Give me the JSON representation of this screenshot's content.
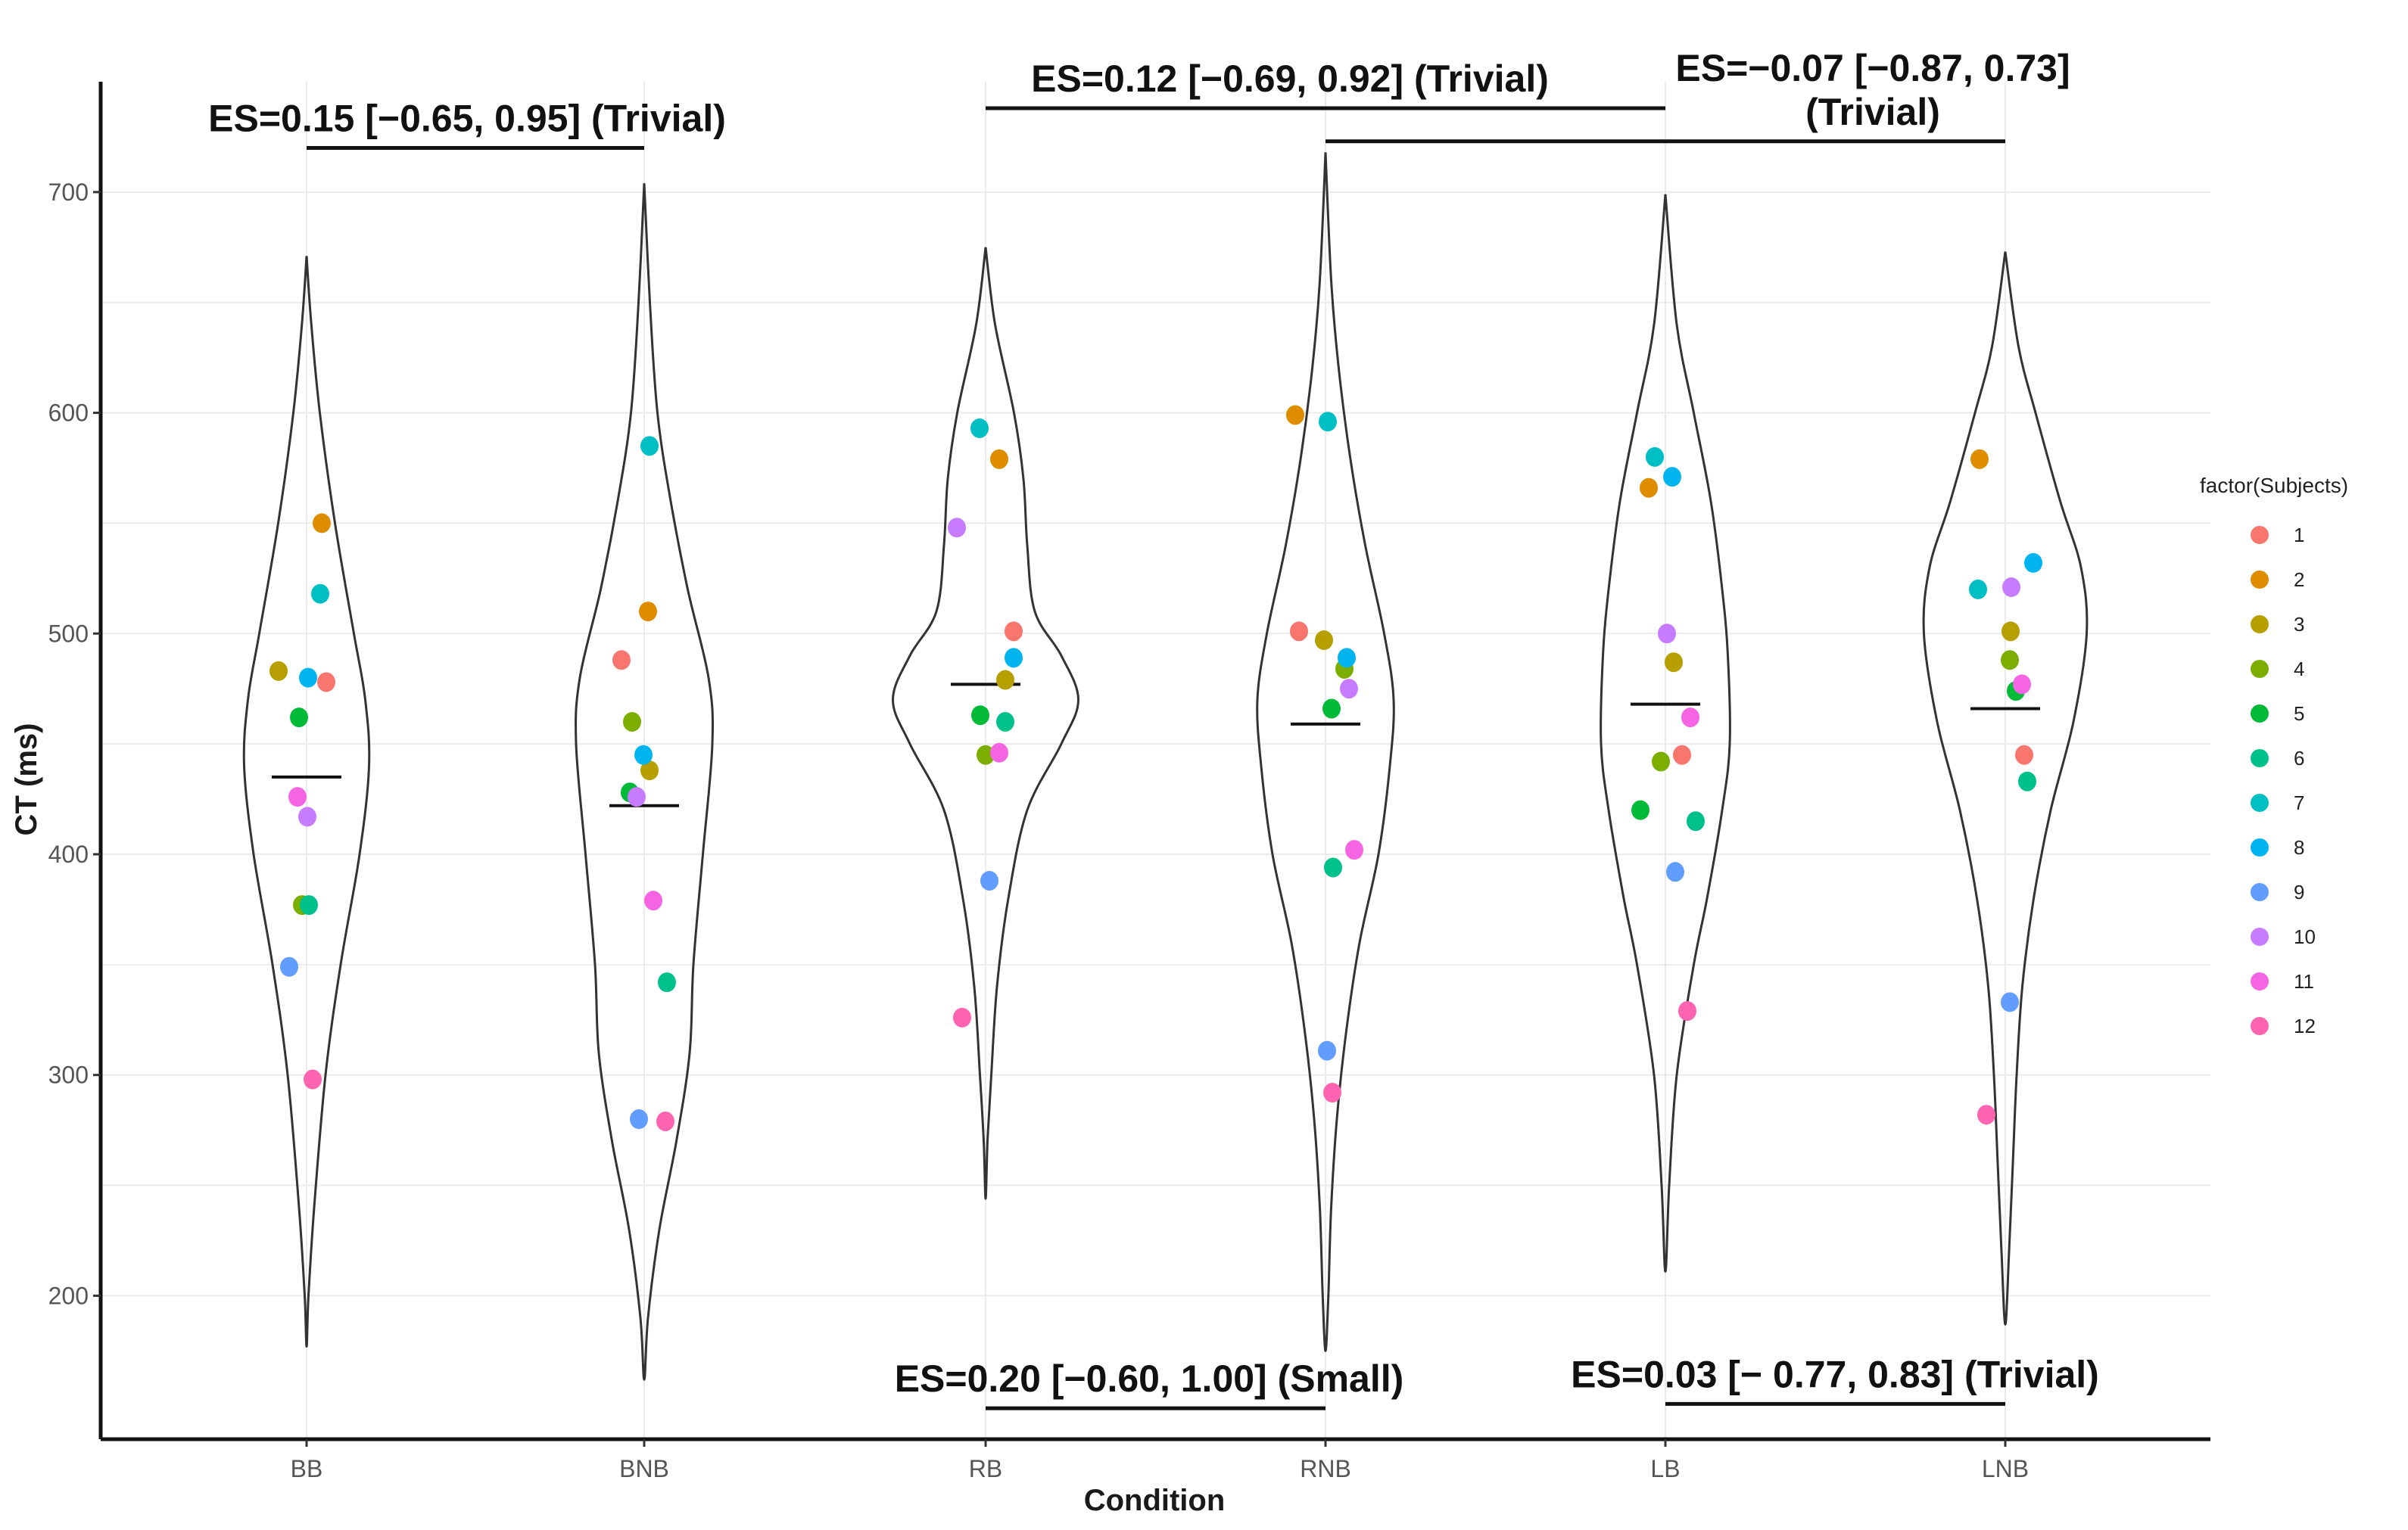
{
  "chart_data": {
    "type": "violin",
    "xlabel": "Condition",
    "ylabel": "CT (ms)",
    "ylim": [
      135,
      750
    ],
    "yticks": [
      200,
      300,
      400,
      500,
      600,
      700
    ],
    "categories": [
      "BB",
      "BNB",
      "RB",
      "RNB",
      "LB",
      "LNB"
    ],
    "grid": true,
    "legend": {
      "title": "factor(Subjects)",
      "position": "right",
      "entries": [
        {
          "label": "1",
          "color": "#F8766D"
        },
        {
          "label": "2",
          "color": "#DE8C00"
        },
        {
          "label": "3",
          "color": "#B79F00"
        },
        {
          "label": "4",
          "color": "#7CAE00"
        },
        {
          "label": "5",
          "color": "#00BA38"
        },
        {
          "label": "6",
          "color": "#00C08B"
        },
        {
          "label": "7",
          "color": "#00BFC4"
        },
        {
          "label": "8",
          "color": "#00B4F0"
        },
        {
          "label": "9",
          "color": "#619CFF"
        },
        {
          "label": "10",
          "color": "#C77CFF"
        },
        {
          "label": "11",
          "color": "#F564E3"
        },
        {
          "label": "12",
          "color": "#FF64B0"
        }
      ]
    },
    "means": [
      435,
      422,
      477,
      459,
      468,
      466
    ],
    "violins": [
      {
        "condition": "BB",
        "profile": [
          [
            177,
            0
          ],
          [
            200,
            2
          ],
          [
            240,
            8
          ],
          [
            300,
            20
          ],
          [
            350,
            36
          ],
          [
            400,
            56
          ],
          [
            440,
            66
          ],
          [
            470,
            62
          ],
          [
            500,
            50
          ],
          [
            550,
            30
          ],
          [
            600,
            14
          ],
          [
            640,
            5
          ],
          [
            671,
            0
          ]
        ]
      },
      {
        "condition": "BNB",
        "profile": [
          [
            162,
            0
          ],
          [
            190,
            4
          ],
          [
            230,
            16
          ],
          [
            270,
            34
          ],
          [
            310,
            48
          ],
          [
            350,
            52
          ],
          [
            400,
            62
          ],
          [
            450,
            72
          ],
          [
            480,
            68
          ],
          [
            520,
            46
          ],
          [
            560,
            28
          ],
          [
            600,
            14
          ],
          [
            650,
            6
          ],
          [
            704,
            0
          ]
        ]
      },
      {
        "condition": "RB",
        "profile": [
          [
            244,
            0
          ],
          [
            270,
            2
          ],
          [
            300,
            6
          ],
          [
            340,
            12
          ],
          [
            380,
            24
          ],
          [
            420,
            44
          ],
          [
            450,
            80
          ],
          [
            470,
            98
          ],
          [
            490,
            80
          ],
          [
            510,
            52
          ],
          [
            540,
            44
          ],
          [
            570,
            40
          ],
          [
            600,
            30
          ],
          [
            640,
            10
          ],
          [
            675,
            0
          ]
        ]
      },
      {
        "condition": "RNB",
        "profile": [
          [
            175,
            0
          ],
          [
            200,
            3
          ],
          [
            240,
            6
          ],
          [
            280,
            12
          ],
          [
            320,
            22
          ],
          [
            360,
            36
          ],
          [
            400,
            56
          ],
          [
            440,
            68
          ],
          [
            470,
            72
          ],
          [
            500,
            62
          ],
          [
            540,
            42
          ],
          [
            580,
            26
          ],
          [
            620,
            14
          ],
          [
            660,
            6
          ],
          [
            718,
            0
          ]
        ]
      },
      {
        "condition": "LB",
        "profile": [
          [
            211,
            0
          ],
          [
            250,
            4
          ],
          [
            300,
            12
          ],
          [
            350,
            30
          ],
          [
            380,
            44
          ],
          [
            420,
            60
          ],
          [
            450,
            68
          ],
          [
            490,
            66
          ],
          [
            520,
            60
          ],
          [
            560,
            48
          ],
          [
            600,
            30
          ],
          [
            640,
            12
          ],
          [
            699,
            0
          ]
        ]
      },
      {
        "condition": "LNB",
        "profile": [
          [
            187,
            0
          ],
          [
            220,
            4
          ],
          [
            260,
            8
          ],
          [
            300,
            12
          ],
          [
            340,
            18
          ],
          [
            380,
            30
          ],
          [
            420,
            48
          ],
          [
            460,
            72
          ],
          [
            500,
            86
          ],
          [
            530,
            80
          ],
          [
            560,
            58
          ],
          [
            600,
            32
          ],
          [
            630,
            14
          ],
          [
            673,
            0
          ]
        ]
      }
    ],
    "points": [
      {
        "condition": "BB",
        "subject": "1",
        "value": 478,
        "jitter": 0.26
      },
      {
        "condition": "BB",
        "subject": "2",
        "value": 550,
        "jitter": 0.2
      },
      {
        "condition": "BB",
        "subject": "3",
        "value": 483,
        "jitter": -0.37
      },
      {
        "condition": "BB",
        "subject": "4",
        "value": 377,
        "jitter": -0.06
      },
      {
        "condition": "BB",
        "subject": "5",
        "value": 462,
        "jitter": -0.1
      },
      {
        "condition": "BB",
        "subject": "6",
        "value": 377,
        "jitter": 0.03
      },
      {
        "condition": "BB",
        "subject": "7",
        "value": 518,
        "jitter": 0.18
      },
      {
        "condition": "BB",
        "subject": "8",
        "value": 480,
        "jitter": 0.02
      },
      {
        "condition": "BB",
        "subject": "9",
        "value": 349,
        "jitter": -0.23
      },
      {
        "condition": "BB",
        "subject": "10",
        "value": 417,
        "jitter": 0.01
      },
      {
        "condition": "BB",
        "subject": "11",
        "value": 426,
        "jitter": -0.12
      },
      {
        "condition": "BB",
        "subject": "12",
        "value": 298,
        "jitter": 0.08
      },
      {
        "condition": "BNB",
        "subject": "1",
        "value": 488,
        "jitter": -0.3
      },
      {
        "condition": "BNB",
        "subject": "2",
        "value": 510,
        "jitter": 0.05
      },
      {
        "condition": "BNB",
        "subject": "3",
        "value": 438,
        "jitter": 0.07
      },
      {
        "condition": "BNB",
        "subject": "4",
        "value": 460,
        "jitter": -0.16
      },
      {
        "condition": "BNB",
        "subject": "5",
        "value": 428,
        "jitter": -0.19
      },
      {
        "condition": "BNB",
        "subject": "6",
        "value": 342,
        "jitter": 0.3
      },
      {
        "condition": "BNB",
        "subject": "7",
        "value": 585,
        "jitter": 0.07
      },
      {
        "condition": "BNB",
        "subject": "8",
        "value": 445,
        "jitter": -0.01
      },
      {
        "condition": "BNB",
        "subject": "9",
        "value": 280,
        "jitter": -0.07
      },
      {
        "condition": "BNB",
        "subject": "10",
        "value": 426,
        "jitter": -0.1
      },
      {
        "condition": "BNB",
        "subject": "11",
        "value": 379,
        "jitter": 0.12
      },
      {
        "condition": "BNB",
        "subject": "12",
        "value": 279,
        "jitter": 0.28
      },
      {
        "condition": "RB",
        "subject": "1",
        "value": 501,
        "jitter": 0.37
      },
      {
        "condition": "RB",
        "subject": "2",
        "value": 579,
        "jitter": 0.18
      },
      {
        "condition": "RB",
        "subject": "3",
        "value": 479,
        "jitter": 0.26
      },
      {
        "condition": "RB",
        "subject": "4",
        "value": 445,
        "jitter": 0.0
      },
      {
        "condition": "RB",
        "subject": "5",
        "value": 463,
        "jitter": -0.07
      },
      {
        "condition": "RB",
        "subject": "6",
        "value": 460,
        "jitter": 0.26
      },
      {
        "condition": "RB",
        "subject": "7",
        "value": 593,
        "jitter": -0.08
      },
      {
        "condition": "RB",
        "subject": "8",
        "value": 489,
        "jitter": 0.37
      },
      {
        "condition": "RB",
        "subject": "9",
        "value": 388,
        "jitter": 0.05
      },
      {
        "condition": "RB",
        "subject": "10",
        "value": 548,
        "jitter": -0.38
      },
      {
        "condition": "RB",
        "subject": "11",
        "value": 446,
        "jitter": 0.18
      },
      {
        "condition": "RB",
        "subject": "12",
        "value": 326,
        "jitter": -0.31
      },
      {
        "condition": "RNB",
        "subject": "1",
        "value": 501,
        "jitter": -0.35
      },
      {
        "condition": "RNB",
        "subject": "2",
        "value": 599,
        "jitter": -0.4
      },
      {
        "condition": "RNB",
        "subject": "3",
        "value": 497,
        "jitter": -0.02
      },
      {
        "condition": "RNB",
        "subject": "4",
        "value": 484,
        "jitter": 0.25
      },
      {
        "condition": "RNB",
        "subject": "5",
        "value": 466,
        "jitter": 0.08
      },
      {
        "condition": "RNB",
        "subject": "6",
        "value": 394,
        "jitter": 0.1
      },
      {
        "condition": "RNB",
        "subject": "7",
        "value": 596,
        "jitter": 0.03
      },
      {
        "condition": "RNB",
        "subject": "8",
        "value": 489,
        "jitter": 0.28
      },
      {
        "condition": "RNB",
        "subject": "9",
        "value": 311,
        "jitter": 0.02
      },
      {
        "condition": "RNB",
        "subject": "10",
        "value": 475,
        "jitter": 0.31
      },
      {
        "condition": "RNB",
        "subject": "11",
        "value": 402,
        "jitter": 0.38
      },
      {
        "condition": "RNB",
        "subject": "12",
        "value": 292,
        "jitter": 0.09
      },
      {
        "condition": "LB",
        "subject": "1",
        "value": 445,
        "jitter": 0.22
      },
      {
        "condition": "LB",
        "subject": "2",
        "value": 566,
        "jitter": -0.22
      },
      {
        "condition": "LB",
        "subject": "3",
        "value": 487,
        "jitter": 0.11
      },
      {
        "condition": "LB",
        "subject": "4",
        "value": 442,
        "jitter": -0.06
      },
      {
        "condition": "LB",
        "subject": "5",
        "value": 420,
        "jitter": -0.33
      },
      {
        "condition": "LB",
        "subject": "6",
        "value": 415,
        "jitter": 0.4
      },
      {
        "condition": "LB",
        "subject": "7",
        "value": 580,
        "jitter": -0.14
      },
      {
        "condition": "LB",
        "subject": "8",
        "value": 571,
        "jitter": 0.09
      },
      {
        "condition": "LB",
        "subject": "9",
        "value": 392,
        "jitter": 0.13
      },
      {
        "condition": "LB",
        "subject": "10",
        "value": 500,
        "jitter": 0.02
      },
      {
        "condition": "LB",
        "subject": "11",
        "value": 462,
        "jitter": 0.33
      },
      {
        "condition": "LB",
        "subject": "12",
        "value": 329,
        "jitter": 0.29
      },
      {
        "condition": "LNB",
        "subject": "1",
        "value": 445,
        "jitter": 0.25
      },
      {
        "condition": "LNB",
        "subject": "2",
        "value": 579,
        "jitter": -0.34
      },
      {
        "condition": "LNB",
        "subject": "3",
        "value": 501,
        "jitter": 0.07
      },
      {
        "condition": "LNB",
        "subject": "4",
        "value": 488,
        "jitter": 0.06
      },
      {
        "condition": "LNB",
        "subject": "5",
        "value": 474,
        "jitter": 0.14
      },
      {
        "condition": "LNB",
        "subject": "6",
        "value": 433,
        "jitter": 0.29
      },
      {
        "condition": "LNB",
        "subject": "7",
        "value": 520,
        "jitter": -0.36
      },
      {
        "condition": "LNB",
        "subject": "8",
        "value": 532,
        "jitter": 0.37
      },
      {
        "condition": "LNB",
        "subject": "9",
        "value": 333,
        "jitter": 0.06
      },
      {
        "condition": "LNB",
        "subject": "10",
        "value": 521,
        "jitter": 0.08
      },
      {
        "condition": "LNB",
        "subject": "11",
        "value": 477,
        "jitter": 0.22
      },
      {
        "condition": "LNB",
        "subject": "12",
        "value": 282,
        "jitter": -0.25
      }
    ],
    "annotations": [
      {
        "from": "BB",
        "to": "BNB",
        "level": 720,
        "side": "top",
        "lines": [
          "ES=0.15 [−0.65, 0.95] (Trivial)"
        ]
      },
      {
        "from": "RB",
        "to": "LB",
        "level": 738,
        "side": "top",
        "lines": [
          "ES=0.12 [−0.69, 0.92] (Trivial)"
        ]
      },
      {
        "from": "RNB",
        "to": "LNB",
        "level": 723,
        "side": "top",
        "lines": [
          "ES=−0.07 [−0.87, 0.73]",
          "(Trivial)"
        ]
      },
      {
        "from": "RB",
        "to": "RNB",
        "level": 149,
        "side": "bottom",
        "lines": [
          "ES=0.20 [−0.60, 1.00] (Small)"
        ]
      },
      {
        "from": "LB",
        "to": "LNB",
        "level": 151,
        "side": "bottom",
        "lines": [
          "ES=0.03 [− 0.77, 0.83] (Trivial)"
        ]
      }
    ]
  }
}
